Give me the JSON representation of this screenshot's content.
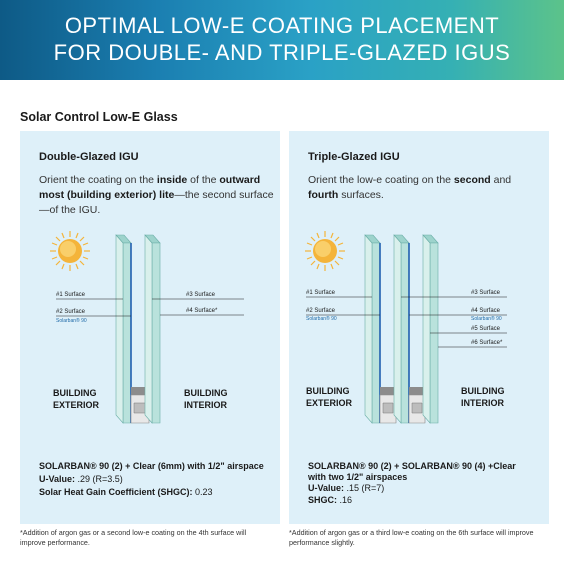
{
  "banner": {
    "line1": "OPTIMAL LOW-E COATING PLACEMENT",
    "line2": "FOR DOUBLE- AND TRIPLE-GLAZED IGUS"
  },
  "section_title": "Solar Control Low-E Glass",
  "double": {
    "title": "Double-Glazed IGU",
    "desc_parts": [
      "Orient the coating on the ",
      "inside",
      " of the ",
      "outward most (building exterior) lite",
      "—the second surface—of the IGU."
    ],
    "labels": {
      "s1": "#1 Surface",
      "s2": "#2 Surface",
      "s2_product": "Solarban® 90",
      "s3": "#3 Surface",
      "s4": "#4 Surface*",
      "ext1": "BUILDING",
      "ext2": "EXTERIOR",
      "int1": "BUILDING",
      "int2": "INTERIOR"
    },
    "spec_line1": "SOLARBAN® 90 (2) + Clear (6mm) with 1/2\" airspace",
    "spec_uvalue_label": "U-Value:",
    "spec_uvalue": " .29 (R=3.5)",
    "spec_shgc_label": "Solar Heat Gain Coefficient (SHGC):",
    "spec_shgc": " 0.23",
    "footnote": "*Addition of argon gas or a second low-e coating on the 4th surface will improve performance."
  },
  "triple": {
    "title": "Triple-Glazed IGU",
    "desc_parts": [
      "Orient the low-e coating on the ",
      "second",
      " and ",
      "fourth",
      " surfaces."
    ],
    "labels": {
      "s1": "#1 Surface",
      "s2": "#2 Surface",
      "s2_product": "Solarban® 90",
      "s3": "#3 Surface",
      "s4": "#4 Surface",
      "s4_product": "Solarban® 90",
      "s5": "#5 Surface",
      "s6": "#6 Surface*",
      "ext1": "BUILDING",
      "ext2": "EXTERIOR",
      "int1": "BUILDING",
      "int2": "INTERIOR"
    },
    "spec_line1": "SOLARBAN® 90 (2) + SOLARBAN® 90 (4) +Clear",
    "spec_line2": "with two 1/2\" airspaces",
    "spec_uvalue_label": "U-Value:",
    "spec_uvalue": " .15 (R=7)",
    "spec_shgc_label": "SHGC:",
    "spec_shgc": " .16",
    "footnote": "*Addition of argon gas or a third low-e coating on the 6th surface will improve performance slightly."
  },
  "colors": {
    "panel": "#def0f9",
    "glass": "#c8e8e4",
    "coating": "#1f5fb0",
    "sun": "#f4b43a"
  }
}
